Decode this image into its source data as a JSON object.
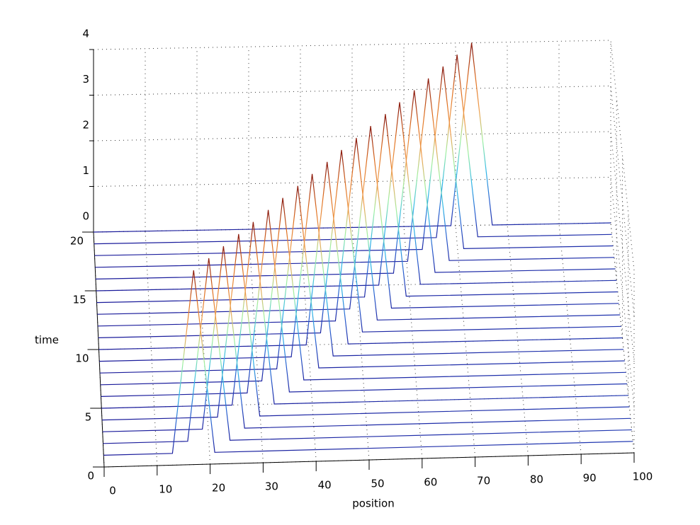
{
  "chart_data": {
    "type": "waterfall3d",
    "xlabel": "position",
    "ylabel": "time",
    "xlim": [
      0,
      100
    ],
    "ylim": [
      0,
      20
    ],
    "zlim": [
      0,
      4
    ],
    "xticks": [
      0,
      10,
      20,
      30,
      40,
      50,
      60,
      70,
      80,
      90,
      100
    ],
    "yticks": [
      0,
      5,
      10,
      15,
      20
    ],
    "zticks": [
      0,
      1,
      2,
      3,
      4
    ],
    "grid": true,
    "colormap": [
      "#1a1a9a",
      "#2a60d0",
      "#30b8e8",
      "#a0f0a0",
      "#f0a050",
      "#e07020",
      "#902010"
    ],
    "series": [
      {
        "time": 1,
        "x": [
          0,
          13,
          17,
          21,
          100
        ],
        "values": [
          0,
          0,
          4,
          0,
          0
        ]
      },
      {
        "time": 2,
        "x": [
          0,
          16,
          20,
          24,
          100
        ],
        "values": [
          0,
          0,
          4,
          0,
          0
        ]
      },
      {
        "time": 3,
        "x": [
          0,
          18.9,
          22.9,
          26.9,
          100
        ],
        "values": [
          0,
          0,
          4,
          0,
          0
        ]
      },
      {
        "time": 4,
        "x": [
          0,
          21.9,
          25.9,
          29.9,
          100
        ],
        "values": [
          0,
          0,
          4,
          0,
          0
        ]
      },
      {
        "time": 5,
        "x": [
          0,
          24.8,
          28.8,
          32.8,
          100
        ],
        "values": [
          0,
          0,
          4,
          0,
          0
        ]
      },
      {
        "time": 6,
        "x": [
          0,
          27.8,
          31.8,
          35.8,
          100
        ],
        "values": [
          0,
          0,
          4,
          0,
          0
        ]
      },
      {
        "time": 7,
        "x": [
          0,
          30.7,
          34.7,
          38.7,
          100
        ],
        "values": [
          0,
          0,
          4,
          0,
          0
        ]
      },
      {
        "time": 8,
        "x": [
          0,
          33.7,
          37.7,
          41.7,
          100
        ],
        "values": [
          0,
          0,
          4,
          0,
          0
        ]
      },
      {
        "time": 9,
        "x": [
          0,
          36.6,
          40.6,
          44.6,
          100
        ],
        "values": [
          0,
          0,
          4,
          0,
          0
        ]
      },
      {
        "time": 10,
        "x": [
          0,
          39.6,
          43.6,
          47.6,
          100
        ],
        "values": [
          0,
          0,
          4,
          0,
          0
        ]
      },
      {
        "time": 11,
        "x": [
          0,
          42.5,
          46.5,
          50.5,
          100
        ],
        "values": [
          0,
          0,
          4,
          0,
          0
        ]
      },
      {
        "time": 12,
        "x": [
          0,
          45.5,
          49.5,
          53.5,
          100
        ],
        "values": [
          0,
          0,
          4,
          0,
          0
        ]
      },
      {
        "time": 13,
        "x": [
          0,
          48.4,
          52.4,
          56.4,
          100
        ],
        "values": [
          0,
          0,
          4,
          0,
          0
        ]
      },
      {
        "time": 14,
        "x": [
          0,
          51.4,
          55.4,
          59.4,
          100
        ],
        "values": [
          0,
          0,
          4,
          0,
          0
        ]
      },
      {
        "time": 15,
        "x": [
          0,
          54.3,
          58.3,
          62.3,
          100
        ],
        "values": [
          0,
          0,
          4,
          0,
          0
        ]
      },
      {
        "time": 16,
        "x": [
          0,
          57.3,
          61.3,
          65.3,
          100
        ],
        "values": [
          0,
          0,
          4,
          0,
          0
        ]
      },
      {
        "time": 17,
        "x": [
          0,
          60.2,
          64.2,
          68.2,
          100
        ],
        "values": [
          0,
          0,
          4,
          0,
          0
        ]
      },
      {
        "time": 18,
        "x": [
          0,
          63.2,
          67.2,
          71.2,
          100
        ],
        "values": [
          0,
          0,
          4,
          0,
          0
        ]
      },
      {
        "time": 19,
        "x": [
          0,
          66.1,
          70.1,
          74.1,
          100
        ],
        "values": [
          0,
          0,
          4,
          0,
          0
        ]
      },
      {
        "time": 20,
        "x": [
          0,
          69.1,
          73.1,
          77.1,
          100
        ],
        "values": [
          0,
          0,
          4,
          0,
          0
        ]
      }
    ]
  }
}
